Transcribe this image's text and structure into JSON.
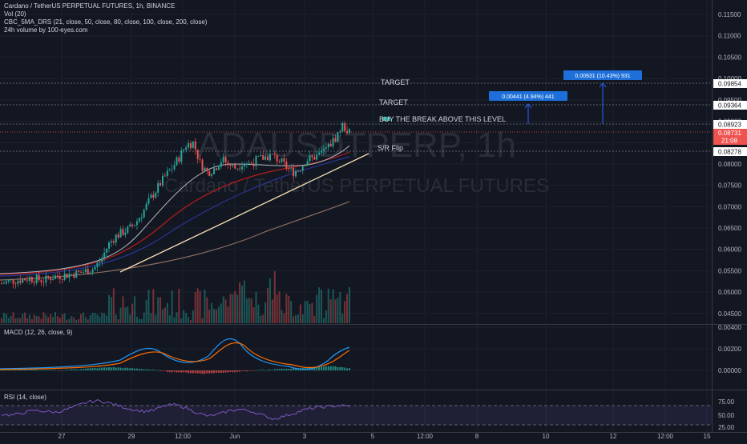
{
  "header": {
    "title": "Cardano / TetherUS PERPETUAL FUTURES, 1h, BINANCE",
    "indicators": [
      "Vol (20)",
      "CBC_5MA_DRS (21, close, 50, close, 80, close, 100, close, 200, close)",
      "24h volume by 100-eyes.com"
    ]
  },
  "watermark": {
    "symbol": "ADAUSDTPERP, 1h",
    "name": "Cardano / TetherUS PERPETUAL FUTURES"
  },
  "colors": {
    "background": "#131722",
    "up": "#26a69a",
    "down": "#ef5350",
    "target_box": "#2962ff",
    "ma21": "#b2b5be",
    "ma50": "#b71c1c",
    "ma80": "#1a237e",
    "ma100": "#f5deb3",
    "ma200": "#8d6e63",
    "macd": "#2196f3",
    "signal": "#ff6d00",
    "rsi": "#7e57c2"
  },
  "annotations": {
    "target1": "TARGET",
    "target2": "TARGET",
    "buy_text": "BUY THE BREAK ABOVE THIS LEVEL",
    "sr_flip": "S/R Flip",
    "box1": "0.00441 (4.94%) 441",
    "box2": "0.00931 (10.43%) 931"
  },
  "price_labels": {
    "target_high": "0.09854",
    "target_low": "0.09364",
    "buy_level": "0.08923",
    "current": "0.08731",
    "countdown": "21:08",
    "sr_level": "0.08278"
  },
  "macd_panel": {
    "label": "MACD (12, 26, close, 9)"
  },
  "rsi_panel": {
    "label": "RSI (14, close)"
  },
  "chart_data": [
    {
      "type": "candlestick",
      "title": "Cardano / TetherUS PERPETUAL FUTURES, 1h, BINANCE",
      "ylim": [
        0.04,
        0.1175
      ],
      "y_ticks": [
        "0.11500",
        "0.11000",
        "0.10500",
        "0.10000",
        "0.09500",
        "0.09000",
        "0.08500",
        "0.08000",
        "0.07500",
        "0.07000",
        "0.06500",
        "0.06000",
        "0.05500",
        "0.05000",
        "0.04500"
      ],
      "x_ticks": [
        "27",
        "29",
        "12:00",
        "Jun",
        "3",
        "5",
        "12:00",
        "8",
        "10",
        "12",
        "12:00",
        "15"
      ],
      "close_path": [
        0.052,
        0.0525,
        0.0528,
        0.053,
        0.0533,
        0.053,
        0.0527,
        0.0535,
        0.0538,
        0.054,
        0.0543,
        0.0545,
        0.055,
        0.0555,
        0.0575,
        0.061,
        0.063,
        0.064,
        0.0648,
        0.0665,
        0.069,
        0.072,
        0.0745,
        0.077,
        0.079,
        0.0815,
        0.0845,
        0.085,
        0.08,
        0.078,
        0.079,
        0.081,
        0.08,
        0.079,
        0.0805,
        0.08,
        0.081,
        0.0815,
        0.082,
        0.081,
        0.0795,
        0.078,
        0.079,
        0.081,
        0.0815,
        0.0825,
        0.084,
        0.086,
        0.089,
        0.0873
      ],
      "horizontal_levels": [
        0.09854,
        0.09364,
        0.08923,
        0.08731,
        0.08278
      ],
      "ma_start_values": {
        "ma21": 0.053,
        "ma50": 0.0525,
        "ma80": 0.052,
        "ma100": 0.051,
        "ma200": 0.05
      },
      "ma_end_values": {
        "ma21": 0.0845,
        "ma50": 0.082,
        "ma80": 0.08,
        "ma100": 0.079,
        "ma200": 0.071
      }
    },
    {
      "type": "bar",
      "title": "MACD (12, 26, close, 9)",
      "ylim": [
        -0.0005,
        0.0024
      ],
      "y_ticks": [
        "0.00400",
        "0.00200",
        "0.00000"
      ],
      "histogram_trend": [
        0.0001,
        0.0001,
        5e-05,
        0.0,
        0.0001,
        0.0002,
        0.0003,
        0.0002,
        0.0001,
        -0.0001,
        -0.0002,
        -0.0003,
        -0.0002,
        -0.0001,
        0.0,
        0.0001,
        0.0002,
        0.0003,
        0.0004,
        0.0002
      ]
    },
    {
      "type": "line",
      "title": "RSI (14, close)",
      "ylim": [
        25,
        85
      ],
      "y_ticks": [
        "75.00",
        "50.00",
        "25.00"
      ],
      "band": [
        30,
        70
      ],
      "values": [
        52,
        50,
        55,
        60,
        58,
        56,
        62,
        70,
        78,
        80,
        75,
        68,
        62,
        58,
        60,
        70,
        72,
        65,
        55,
        48,
        52,
        60,
        62,
        58,
        50,
        42,
        48,
        55,
        62,
        66,
        68,
        70,
        69
      ]
    }
  ]
}
